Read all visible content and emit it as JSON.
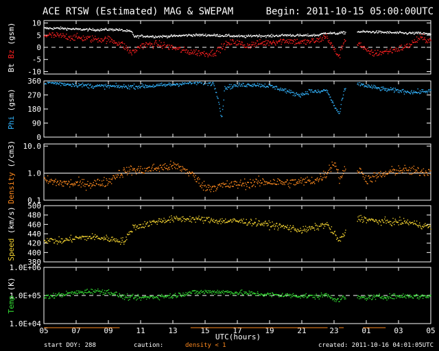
{
  "header": {
    "title": "ACE RTSW (Estimated) MAG & SWEPAM",
    "begin": "Begin: 2011-10-15 05:00:00UTC"
  },
  "footer": {
    "start_doy": "start DOY: 288",
    "caution": "caution:",
    "density_note": "density < 1",
    "created": "created: 2011-10-16 04:01:05UTC"
  },
  "colors": {
    "bt": "#ffffff",
    "bz": "#ff2020",
    "phi": "#33b5ff",
    "density": "#ff8a1e",
    "speed": "#f2d230",
    "temp": "#33dd33",
    "frame": "#ffffff",
    "background": "#000000"
  },
  "chart_data": {
    "type": "scatter",
    "x_axis": {
      "label": "UTC(hours)",
      "range_hours": [
        0,
        24
      ],
      "ticks": [
        "05",
        "07",
        "09",
        "11",
        "13",
        "15",
        "17",
        "19",
        "21",
        "23",
        "01",
        "03",
        "05"
      ]
    },
    "panels": [
      {
        "key": "mag",
        "ylabel_parts": [
          {
            "text": "Bt",
            "color": "#ffffff"
          },
          {
            "text": " Bz",
            "color": "#ff2020"
          },
          {
            "text": " (gsm)",
            "color": "#ffffff"
          }
        ],
        "ylim": [
          -11,
          11
        ],
        "yticks": [
          {
            "v": 10,
            "t": "10"
          },
          {
            "v": 5,
            "t": "5"
          },
          {
            "v": 0,
            "t": "0"
          },
          {
            "v": -5,
            "t": "-5"
          },
          {
            "v": -10,
            "t": "-10"
          }
        ],
        "reference": {
          "value": 0,
          "style": "dashed"
        },
        "series": [
          {
            "name": "Bt",
            "color": "#ffffff",
            "noise": 0.5,
            "gaps": [
              [
                18.7,
                19.4
              ]
            ],
            "points": [
              [
                0,
                8
              ],
              [
                1,
                8
              ],
              [
                2,
                7.6
              ],
              [
                3,
                7.4
              ],
              [
                4.5,
                7.5
              ],
              [
                5.4,
                6.6
              ],
              [
                5.6,
                4.5
              ],
              [
                6,
                4.8
              ],
              [
                7,
                4.6
              ],
              [
                8,
                4.8
              ],
              [
                9,
                5.2
              ],
              [
                10,
                5.2
              ],
              [
                11.2,
                5
              ],
              [
                11.8,
                4.8
              ],
              [
                12.5,
                4.6
              ],
              [
                13,
                5
              ],
              [
                14,
                4.8
              ],
              [
                15,
                5.2
              ],
              [
                16,
                5
              ],
              [
                17,
                5.2
              ],
              [
                17.5,
                6.2
              ],
              [
                18,
                5.8
              ],
              [
                18.6,
                6.2
              ],
              [
                19.5,
                6.6
              ],
              [
                20.5,
                6.5
              ],
              [
                21.5,
                6.2
              ],
              [
                22.5,
                6
              ],
              [
                23.3,
                6
              ],
              [
                24,
                5.5
              ]
            ]
          },
          {
            "name": "Bz",
            "color": "#ff2020",
            "noise": 1.4,
            "gaps": [
              [
                18.7,
                19.4
              ]
            ],
            "points": [
              [
                0,
                5.2
              ],
              [
                1,
                4.8
              ],
              [
                2,
                4.2
              ],
              [
                3,
                3.6
              ],
              [
                4,
                3.4
              ],
              [
                4.8,
                1.5
              ],
              [
                5.4,
                -2
              ],
              [
                5.6,
                -1.5
              ],
              [
                6,
                1
              ],
              [
                7,
                1.5
              ],
              [
                8,
                0
              ],
              [
                8.8,
                -1.5
              ],
              [
                9.5,
                -2
              ],
              [
                10,
                -2.4
              ],
              [
                10.5,
                -2.2
              ],
              [
                11.2,
                1
              ],
              [
                11.8,
                2.5
              ],
              [
                12.5,
                0.8
              ],
              [
                13,
                1.5
              ],
              [
                14,
                2.3
              ],
              [
                15,
                3
              ],
              [
                16,
                2.2
              ],
              [
                17,
                3
              ],
              [
                17.5,
                4.8
              ],
              [
                18,
                -1
              ],
              [
                18.3,
                -3.6
              ],
              [
                18.6,
                3
              ],
              [
                19.5,
                2
              ],
              [
                20,
                -1.5
              ],
              [
                20.5,
                -2.4
              ],
              [
                21.5,
                -1.2
              ],
              [
                22.5,
                0.5
              ],
              [
                23.3,
                4
              ],
              [
                24,
                3
              ]
            ]
          }
        ]
      },
      {
        "key": "phi",
        "ylabel_parts": [
          {
            "text": "Phi",
            "color": "#33b5ff"
          },
          {
            "text": " (gsm)",
            "color": "#ffffff"
          }
        ],
        "ylim": [
          0,
          360
        ],
        "yticks": [
          {
            "v": 360,
            "t": "360"
          },
          {
            "v": 270,
            "t": "270"
          },
          {
            "v": 180,
            "t": "180"
          },
          {
            "v": 90,
            "t": "90"
          },
          {
            "v": 0,
            "t": "0"
          }
        ],
        "series": [
          {
            "name": "Phi",
            "color": "#33b5ff",
            "noise": 14,
            "gaps": [
              [
                18.7,
                19.4
              ]
            ],
            "points": [
              [
                0,
                355
              ],
              [
                1,
                345
              ],
              [
                2,
                338
              ],
              [
                3,
                330
              ],
              [
                4,
                328
              ],
              [
                5,
                326
              ],
              [
                6,
                328
              ],
              [
                7,
                332
              ],
              [
                8,
                340
              ],
              [
                9,
                350
              ],
              [
                10,
                352
              ],
              [
                10.5,
                345
              ],
              [
                10.8,
                250
              ],
              [
                11,
                120
              ],
              [
                11.2,
                320
              ],
              [
                12,
                335
              ],
              [
                13,
                340
              ],
              [
                14,
                330
              ],
              [
                15,
                300
              ],
              [
                15.5,
                280
              ],
              [
                16,
                275
              ],
              [
                16.5,
                300
              ],
              [
                17,
                290
              ],
              [
                17.5,
                305
              ],
              [
                18,
                200
              ],
              [
                18.3,
                150
              ],
              [
                18.6,
                300
              ],
              [
                19.5,
                345
              ],
              [
                20,
                330
              ],
              [
                21,
                310
              ],
              [
                22,
                300
              ],
              [
                23,
                290
              ],
              [
                24,
                300
              ]
            ]
          }
        ]
      },
      {
        "key": "density",
        "ylabel_parts": [
          {
            "text": "Density",
            "color": "#ff8a1e"
          },
          {
            "text": " (/cm3)",
            "color": "#ffffff"
          }
        ],
        "scale": "log",
        "ylim": [
          0.1,
          12
        ],
        "yticks": [
          {
            "v": 10,
            "t": "10.0"
          },
          {
            "v": 1,
            "t": "1.0"
          },
          {
            "v": 0.1,
            "t": "0.1"
          }
        ],
        "reference": {
          "value": 1.0,
          "style": "solid"
        },
        "series": [
          {
            "name": "Density",
            "color": "#ff8a1e",
            "noise": 0.35,
            "log": true,
            "gaps": [
              [
                18.7,
                19.4
              ]
            ],
            "points": [
              [
                0,
                0.55
              ],
              [
                1,
                0.45
              ],
              [
                2,
                0.42
              ],
              [
                3,
                0.42
              ],
              [
                4,
                0.5
              ],
              [
                4.5,
                0.9
              ],
              [
                5,
                1.2
              ],
              [
                5.5,
                1.4
              ],
              [
                6,
                1.3
              ],
              [
                7,
                1.6
              ],
              [
                8,
                1.9
              ],
              [
                8.5,
                1.6
              ],
              [
                9,
                1.1
              ],
              [
                9.5,
                0.55
              ],
              [
                10,
                0.3
              ],
              [
                11,
                0.35
              ],
              [
                12,
                0.4
              ],
              [
                13,
                0.45
              ],
              [
                14,
                0.5
              ],
              [
                15,
                0.45
              ],
              [
                16,
                0.5
              ],
              [
                17,
                0.6
              ],
              [
                17.5,
                1
              ],
              [
                18,
                2.5
              ],
              [
                18.3,
                0.6
              ],
              [
                18.6,
                1.2
              ],
              [
                19.5,
                1.4
              ],
              [
                20,
                0.6
              ],
              [
                21,
                0.9
              ],
              [
                22,
                1.4
              ],
              [
                23,
                1.2
              ],
              [
                24,
                1.2
              ]
            ]
          }
        ]
      },
      {
        "key": "speed",
        "ylabel_parts": [
          {
            "text": "Speed",
            "color": "#f2d230"
          },
          {
            "text": " (km/s)",
            "color": "#ffffff"
          }
        ],
        "ylim": [
          380,
          500
        ],
        "yticks": [
          {
            "v": 500,
            "t": "500"
          },
          {
            "v": 480,
            "t": "480"
          },
          {
            "v": 460,
            "t": "460"
          },
          {
            "v": 440,
            "t": "440"
          },
          {
            "v": 420,
            "t": "420"
          },
          {
            "v": 400,
            "t": "400"
          },
          {
            "v": 380,
            "t": "380"
          }
        ],
        "series": [
          {
            "name": "Speed",
            "color": "#f2d230",
            "noise": 7,
            "gaps": [
              [
                18.7,
                19.4
              ]
            ],
            "points": [
              [
                0,
                428
              ],
              [
                1,
                425
              ],
              [
                2,
                432
              ],
              [
                3,
                434
              ],
              [
                4,
                430
              ],
              [
                5,
                425
              ],
              [
                5.5,
                455
              ],
              [
                6,
                458
              ],
              [
                7,
                468
              ],
              [
                8,
                472
              ],
              [
                9,
                473
              ],
              [
                10,
                471
              ],
              [
                11,
                468
              ],
              [
                12,
                468
              ],
              [
                13,
                465
              ],
              [
                14,
                460
              ],
              [
                15,
                455
              ],
              [
                16,
                448
              ],
              [
                17,
                456
              ],
              [
                17.5,
                462
              ],
              [
                18,
                440
              ],
              [
                18.3,
                425
              ],
              [
                18.6,
                440
              ],
              [
                19.5,
                475
              ],
              [
                20.5,
                468
              ],
              [
                21.5,
                466
              ],
              [
                22.5,
                466
              ],
              [
                23.3,
                460
              ],
              [
                24,
                455
              ]
            ]
          }
        ]
      },
      {
        "key": "temp",
        "ylabel_parts": [
          {
            "text": "Temp",
            "color": "#33dd33"
          },
          {
            "text": " (K)",
            "color": "#ffffff"
          }
        ],
        "scale": "log",
        "ylim": [
          10000,
          1000000
        ],
        "yticks": [
          {
            "v": 1000000,
            "t": "1.0E+06"
          },
          {
            "v": 100000,
            "t": "1.0E+05"
          },
          {
            "v": 10000,
            "t": "1.0E+04"
          }
        ],
        "reference": {
          "value": 100000,
          "style": "dashed"
        },
        "series": [
          {
            "name": "Temp",
            "color": "#33dd33",
            "noise": 0.18,
            "log": true,
            "gaps": [
              [
                18.7,
                19.4
              ]
            ],
            "points": [
              [
                0,
                90000
              ],
              [
                1,
                110000
              ],
              [
                2,
                130000
              ],
              [
                3,
                150000
              ],
              [
                4,
                140000
              ],
              [
                4.5,
                110000
              ],
              [
                5,
                90000
              ],
              [
                6,
                85000
              ],
              [
                7,
                95000
              ],
              [
                8,
                100000
              ],
              [
                9,
                130000
              ],
              [
                10,
                140000
              ],
              [
                11,
                140000
              ],
              [
                12,
                130000
              ],
              [
                13,
                120000
              ],
              [
                14,
                110000
              ],
              [
                15,
                105000
              ],
              [
                16,
                100000
              ],
              [
                17,
                95000
              ],
              [
                17.5,
                110000
              ],
              [
                18,
                80000
              ],
              [
                18.3,
                70000
              ],
              [
                18.6,
                90000
              ],
              [
                19.5,
                85000
              ],
              [
                20.5,
                90000
              ],
              [
                21.5,
                95000
              ],
              [
                22.5,
                100000
              ],
              [
                23.3,
                95000
              ],
              [
                24,
                100000
              ]
            ]
          }
        ]
      }
    ]
  }
}
